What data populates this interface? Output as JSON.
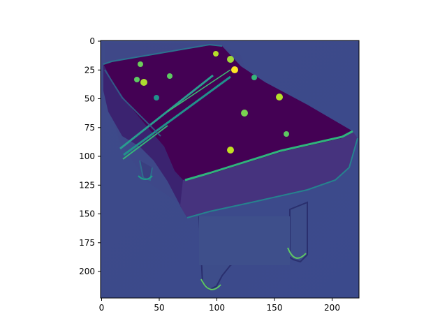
{
  "image": {
    "subject": "pool-table",
    "colormap": "viridis",
    "background_color": "#3e4a89",
    "felt_color": "#440154",
    "highlight_color": "#35b779",
    "bright_color": "#fde725",
    "rails_color": "#26828e"
  },
  "axes": {
    "x_ticks": [
      "0",
      "50",
      "100",
      "150",
      "200"
    ],
    "y_ticks": [
      "0",
      "25",
      "50",
      "75",
      "100",
      "125",
      "150",
      "175",
      "200"
    ],
    "x_range": [
      0,
      224
    ],
    "y_range": [
      224,
      0
    ]
  }
}
